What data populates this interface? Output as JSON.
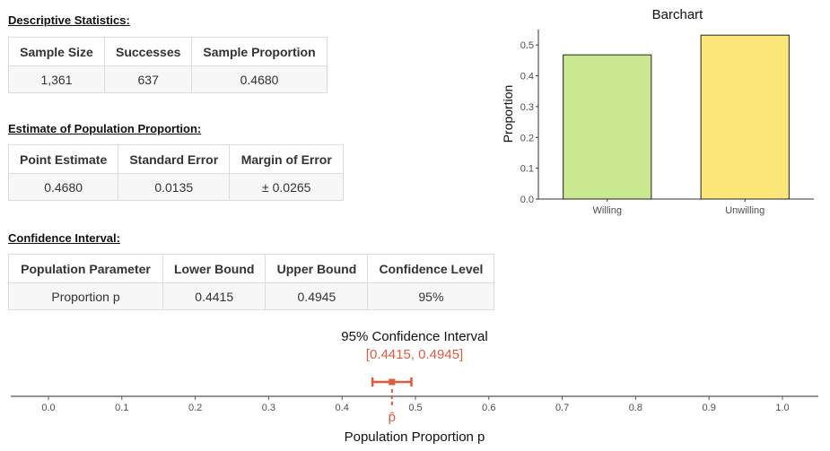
{
  "sections": {
    "descriptive": {
      "title": "Descriptive Statistics:",
      "headers": [
        "Sample Size",
        "Successes",
        "Sample Proportion"
      ],
      "values": [
        "1,361",
        "637",
        "0.4680"
      ]
    },
    "estimate": {
      "title": "Estimate of Population Proportion:",
      "headers": [
        "Point Estimate",
        "Standard Error",
        "Margin of Error"
      ],
      "values": [
        "0.4680",
        "0.0135",
        "± 0.0265"
      ]
    },
    "confidence": {
      "title": "Confidence Interval:",
      "headers": [
        "Population Parameter",
        "Lower Bound",
        "Upper Bound",
        "Confidence Level"
      ],
      "values": [
        "Proportion p",
        "0.4415",
        "0.4945",
        "95%"
      ]
    }
  },
  "chart_data": [
    {
      "type": "bar",
      "title": "Barchart",
      "xlabel": "",
      "ylabel": "Proportion",
      "categories": [
        "Willing",
        "Unwilling"
      ],
      "values": [
        0.468,
        0.532
      ],
      "colors": [
        "#c9e88f",
        "#fde67a"
      ],
      "ylim": [
        0,
        0.55
      ],
      "yticks": [
        "0.0",
        "0.1",
        "0.2",
        "0.3",
        "0.4",
        "0.5"
      ],
      "grid": false
    },
    {
      "type": "interval",
      "title": "95% Confidence Interval",
      "subtitle": "[0.4415, 0.4945]",
      "xlabel": "Population Proportion p",
      "point_estimate": 0.468,
      "point_label": "p̂",
      "lower": 0.4415,
      "upper": 0.4945,
      "xlim": [
        0,
        1
      ],
      "xticks": [
        "0.0",
        "0.1",
        "0.2",
        "0.3",
        "0.4",
        "0.5",
        "0.6",
        "0.7",
        "0.8",
        "0.9",
        "1.0"
      ],
      "color": "#e05a3f"
    }
  ]
}
